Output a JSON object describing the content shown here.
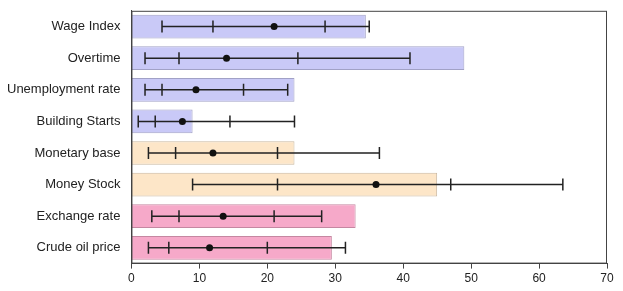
{
  "chart_data": {
    "type": "bar",
    "orientation": "horizontal",
    "categories": [
      "Wage Index",
      "Overtime",
      "Unemployment rate",
      "Building Starts",
      "Monetary base",
      "Money Stock",
      "Exchange rate",
      "Crude oil price"
    ],
    "values": [
      34.5,
      49,
      24,
      9,
      24,
      45,
      33,
      29.5
    ],
    "colors": [
      "#c9c9f7",
      "#c9c9f7",
      "#c9c9f7",
      "#c9c9f7",
      "#fde6c8",
      "#fde6c8",
      "#f6a9c9",
      "#f6a9c9"
    ],
    "error_bars": [
      {
        "min": 4.5,
        "lower": 12,
        "point": 21,
        "upper": 28.5,
        "max": 35
      },
      {
        "min": 2,
        "lower": 7,
        "point": 14,
        "upper": 24.5,
        "max": 41
      },
      {
        "min": 2,
        "lower": 4.5,
        "point": 9.5,
        "upper": 16.5,
        "max": 23
      },
      {
        "min": 1,
        "lower": 3.5,
        "point": 7.5,
        "upper": 14.5,
        "max": 24
      },
      {
        "min": 2.5,
        "lower": 6.5,
        "point": 12,
        "upper": 21.5,
        "max": 36.5
      },
      {
        "min": 9,
        "lower": 21.5,
        "point": 36,
        "upper": 47,
        "max": 63.5
      },
      {
        "min": 3,
        "lower": 7,
        "point": 13.5,
        "upper": 21,
        "max": 28
      },
      {
        "min": 2.5,
        "lower": 5.5,
        "point": 11.5,
        "upper": 20,
        "max": 31.5
      }
    ],
    "xlim": [
      0,
      70
    ],
    "xticks": [
      0,
      10,
      20,
      30,
      40,
      50,
      60,
      70
    ],
    "grid": false
  }
}
